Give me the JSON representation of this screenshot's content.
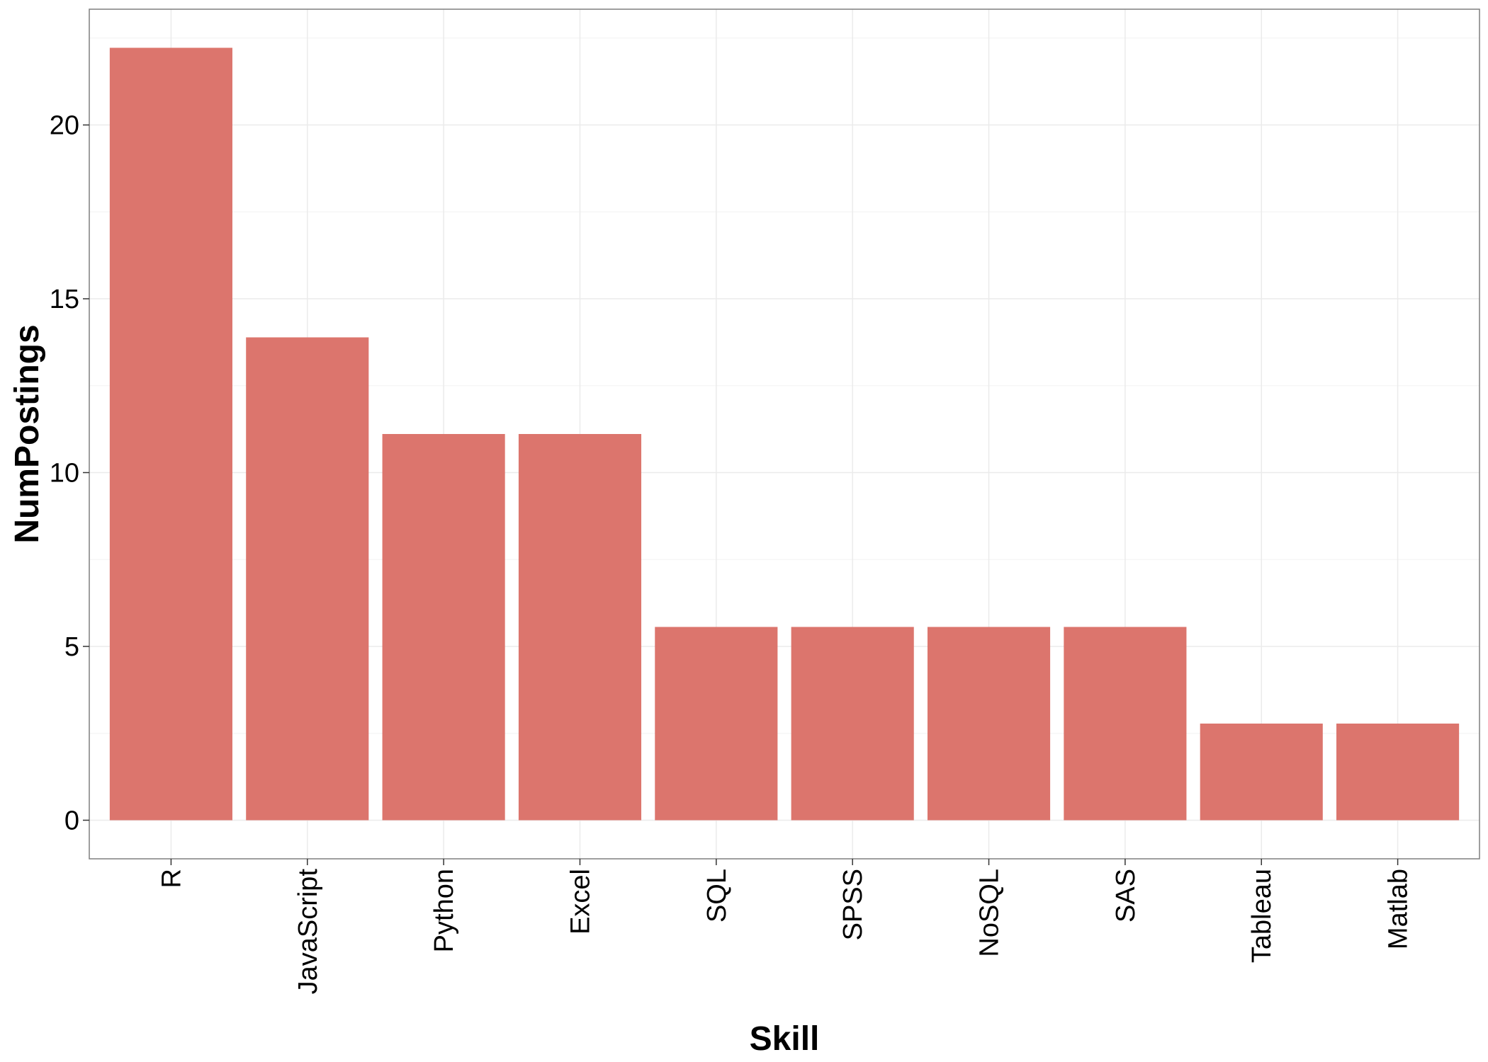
{
  "chart_data": {
    "type": "bar",
    "title": "",
    "xlabel": "Skill",
    "ylabel": "NumPostings",
    "categories": [
      "R",
      "JavaScript",
      "Python",
      "Excel",
      "SQL",
      "SPSS",
      "NoSQL",
      "SAS",
      "Tableau",
      "Matlab"
    ],
    "values": [
      22.22,
      13.89,
      11.11,
      11.11,
      5.56,
      5.56,
      5.56,
      5.56,
      2.78,
      2.78
    ],
    "yticks": [
      0,
      5,
      10,
      15,
      20
    ],
    "ylim": [
      -1.11,
      23.33
    ],
    "grid": true,
    "legend": "none",
    "bar_color": "#dc756d",
    "grid_color": "#ebebeb",
    "panel_border_color": "#7f7f7f",
    "background": "#ffffff"
  }
}
